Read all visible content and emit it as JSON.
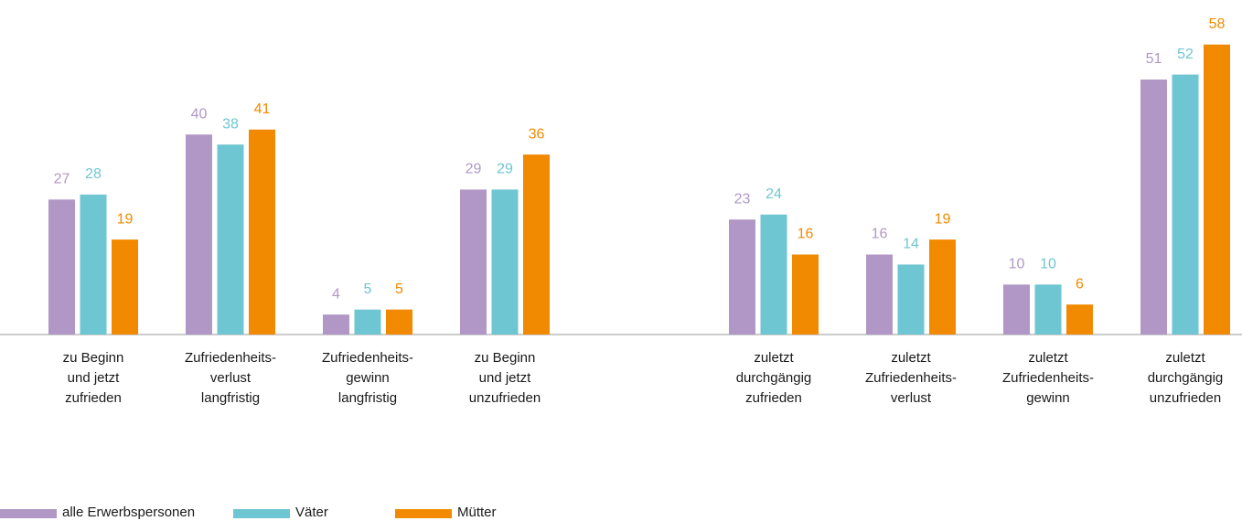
{
  "chart_data": {
    "type": "bar",
    "categories": [
      "zu Beginn\nund jetzt\nzufrieden",
      "Zufriedenheits-\nverlust\nlangfristig",
      "Zufriedenheits-\ngewinn\nlangfristig",
      "zu Beginn\nund jetzt\nunzufrieden",
      "zuletzt\ndurchgängig\nzufrieden",
      "zuletzt\nZufriedenheits-\nverlust",
      "zuletzt\nZufriedenheits-\ngewinn",
      "zuletzt\ndurchgängig\nunzufrieden"
    ],
    "series": [
      {
        "name": "alle Erwerbspersonen",
        "color": "#b197c5",
        "values": [
          27,
          40,
          4,
          29,
          23,
          16,
          10,
          51
        ]
      },
      {
        "name": "Väter",
        "color": "#6ec6d2",
        "values": [
          28,
          38,
          5,
          29,
          24,
          14,
          10,
          52
        ]
      },
      {
        "name": "Mütter",
        "color": "#f18a00",
        "values": [
          19,
          41,
          5,
          36,
          16,
          19,
          6,
          58
        ]
      }
    ]
  }
}
